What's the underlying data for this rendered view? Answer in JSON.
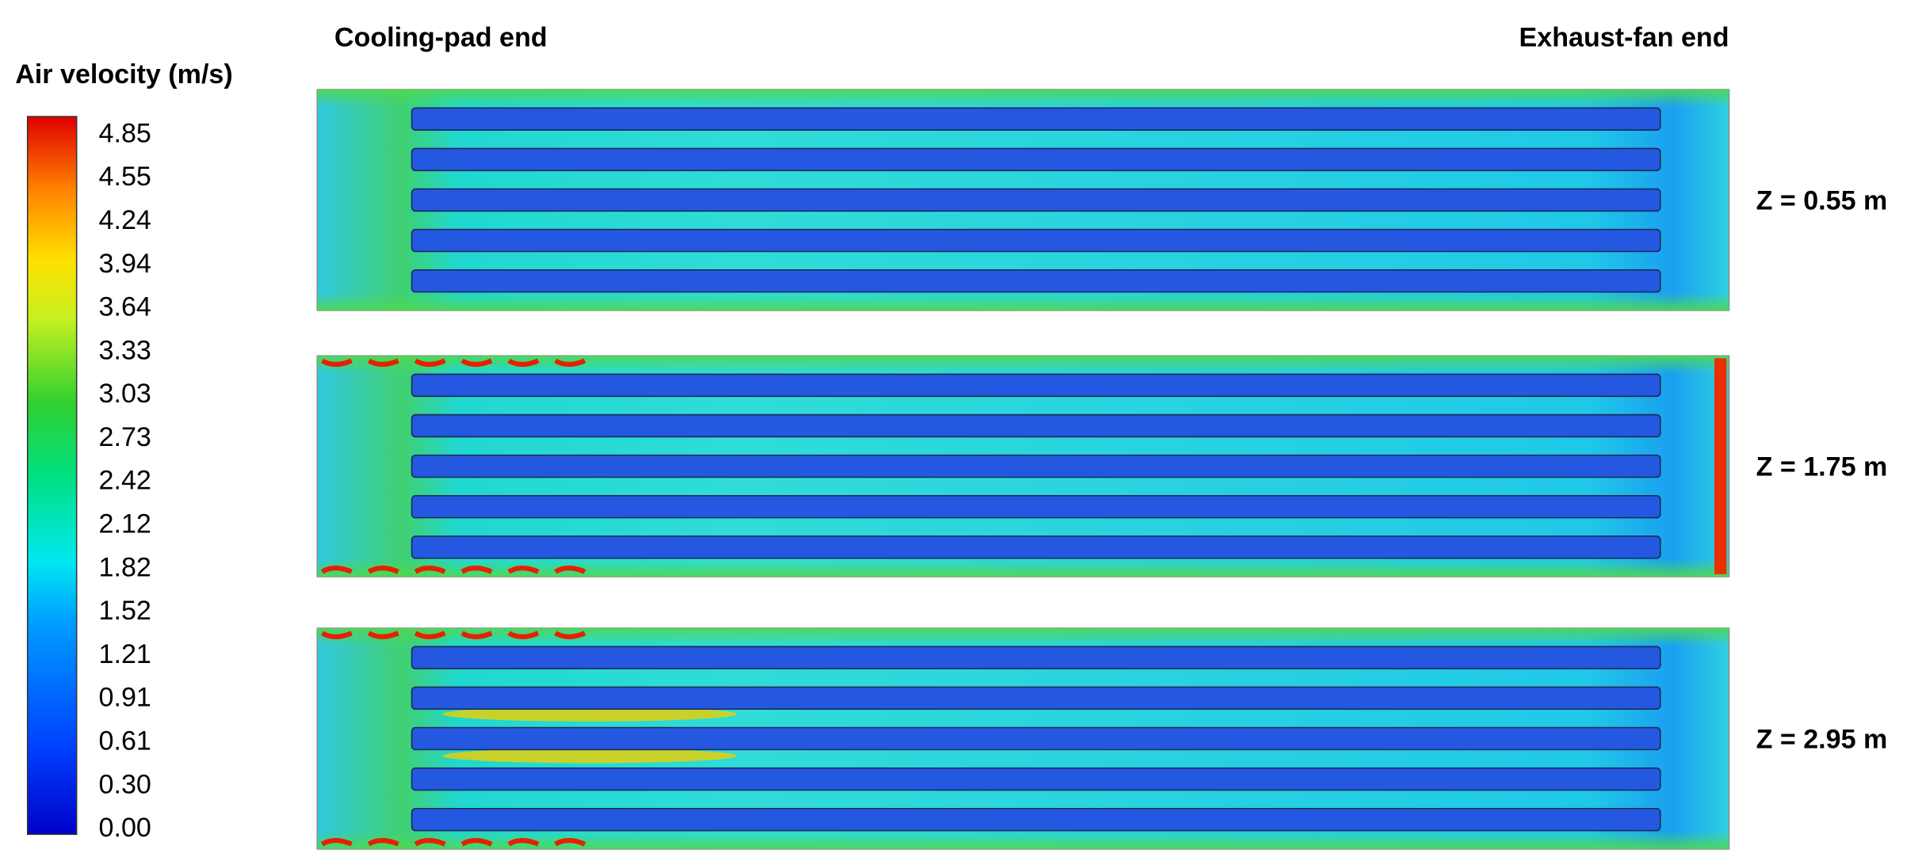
{
  "legend": {
    "title": "Air velocity (m/s)",
    "ticks": [
      "4.85",
      "4.55",
      "4.24",
      "3.94",
      "3.64",
      "3.33",
      "3.03",
      "2.73",
      "2.42",
      "2.12",
      "1.82",
      "1.52",
      "1.21",
      "0.91",
      "0.61",
      "0.30",
      "0.00"
    ]
  },
  "header": {
    "left": "Cooling-pad end",
    "right": "Exhaust-fan end"
  },
  "panels": [
    {
      "label": "Z = 0.55 m"
    },
    {
      "label": "Z = 1.75 m"
    },
    {
      "label": "Z = 2.95 m"
    }
  ]
}
